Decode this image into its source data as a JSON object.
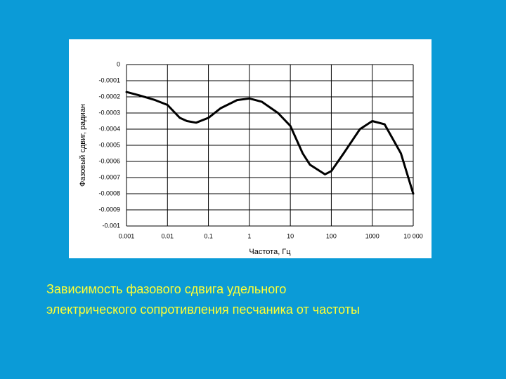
{
  "chart_data": {
    "type": "line",
    "ylabel": "Фазовый сдвиг, радиан",
    "xlabel": "Частота, Гц",
    "x": [
      0.001,
      0.002,
      0.005,
      0.01,
      0.02,
      0.03,
      0.05,
      0.1,
      0.2,
      0.5,
      1,
      2,
      5,
      10,
      20,
      30,
      70,
      100,
      200,
      500,
      1000,
      2000,
      5000,
      10000
    ],
    "values": [
      -0.00017,
      -0.00019,
      -0.00022,
      -0.00025,
      -0.00033,
      -0.00035,
      -0.00036,
      -0.00033,
      -0.00027,
      -0.00022,
      -0.00021,
      -0.00023,
      -0.0003,
      -0.00038,
      -0.00055,
      -0.00062,
      -0.00068,
      -0.00066,
      -0.00055,
      -0.0004,
      -0.00035,
      -0.00037,
      -0.00055,
      -0.0008
    ],
    "color": "#000000",
    "xlog": true,
    "xlim": [
      0.001,
      10000
    ],
    "xticks": [
      0.001,
      0.01,
      0.1,
      1,
      10,
      100,
      1000,
      {
        "value": 10000,
        "label": "10 000"
      }
    ],
    "ylim": [
      -0.001,
      0
    ],
    "yticks": [
      0,
      -0.0001,
      -0.0002,
      -0.0003,
      -0.0004,
      -0.0005,
      -0.0006,
      -0.0007,
      -0.0008,
      -0.0009,
      -0.001
    ],
    "grid": true
  },
  "caption": [
    "Зависимость фазового сдвига удельного",
    "электрического сопротивления песчаника от частоты"
  ]
}
